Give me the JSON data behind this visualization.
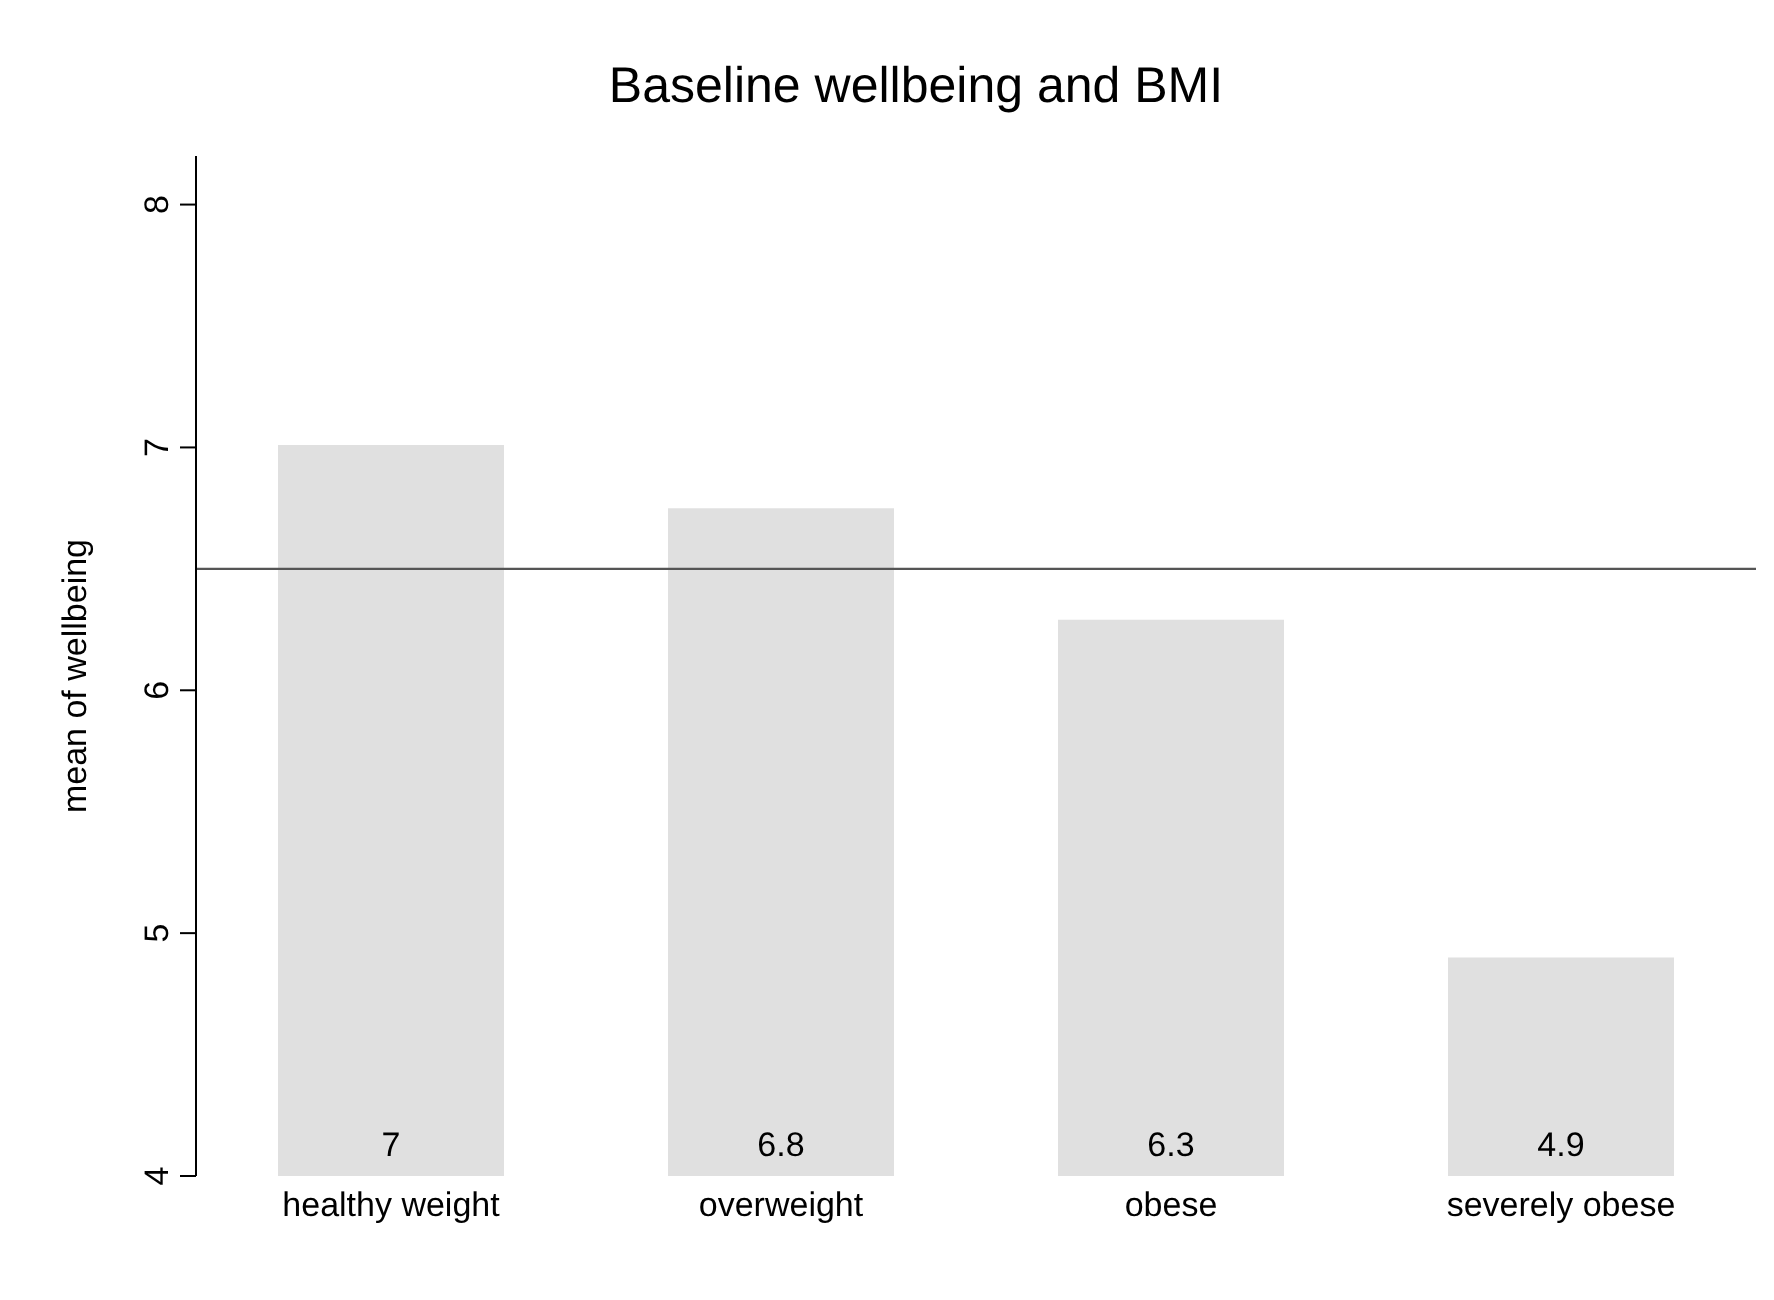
{
  "chart_data": {
    "type": "bar",
    "title": "Baseline wellbeing and BMI",
    "ylabel": "mean of wellbeing",
    "categories": [
      "healthy weight",
      "overweight",
      "obese",
      "severely obese"
    ],
    "values": [
      7.01,
      6.75,
      6.29,
      4.9
    ],
    "value_labels": [
      "7",
      "6.8",
      "6.3",
      "4.9"
    ],
    "color": "#e0e0e0",
    "ylim": [
      4,
      8.2
    ],
    "yticks": [
      4,
      5,
      6,
      7,
      8
    ],
    "ref_lines": [
      {
        "axis": "y",
        "value": 6.5,
        "color": "#555555"
      }
    ]
  }
}
